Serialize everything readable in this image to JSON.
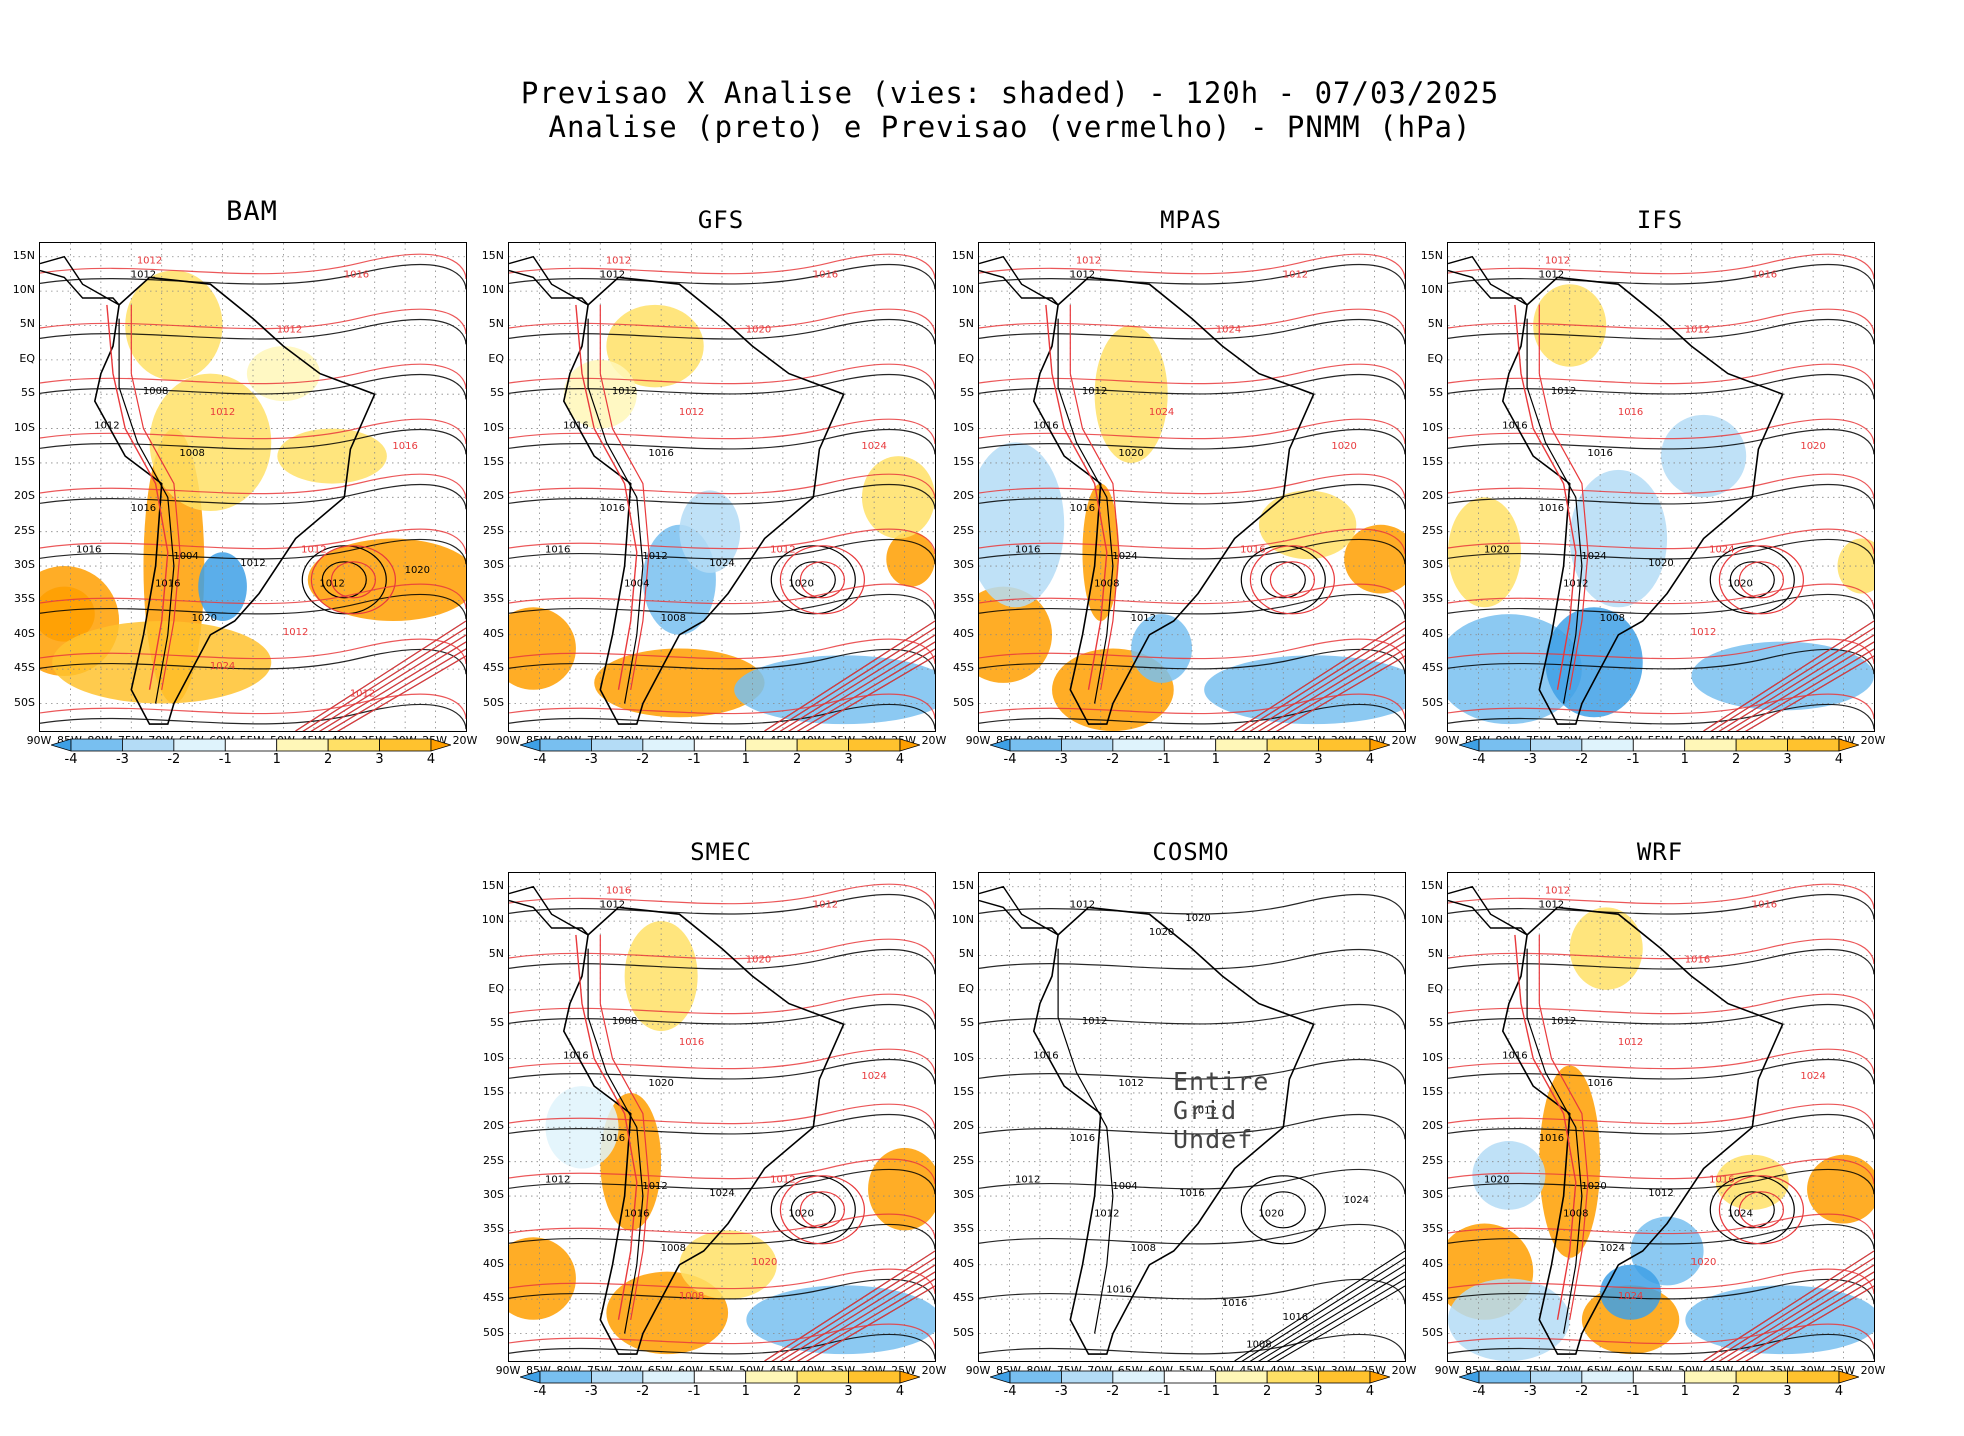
{
  "header": {
    "line1": "Previsao X Analise (vies: shaded) - 120h - 07/03/2025",
    "line2": "Analise (preto) e Previsao (vermelho) - PNMM (hPa)"
  },
  "axes": {
    "lat_labels": [
      "15N",
      "10N",
      "5N",
      "EQ",
      "5S",
      "10S",
      "15S",
      "20S",
      "25S",
      "30S",
      "35S",
      "40S",
      "45S",
      "50S"
    ],
    "lon_labels": [
      "90W",
      "85W",
      "80W",
      "75W",
      "70W",
      "65W",
      "60W",
      "55W",
      "50W",
      "45W",
      "40W",
      "35W",
      "30W",
      "25W",
      "20W"
    ]
  },
  "colorbar": {
    "labels": [
      "-4",
      "-3",
      "-2",
      "-1",
      "1",
      "2",
      "3",
      "4"
    ],
    "colors": [
      "#3ea0e6",
      "#78bff0",
      "#b4dcf6",
      "#dff3fc",
      "#ffffff",
      "#fff7b8",
      "#ffe066",
      "#ffc22e",
      "#ff9f00"
    ]
  },
  "colors": {
    "analysis": "#000000",
    "forecast": "#e8393c"
  },
  "panels": [
    {
      "id": "bam",
      "title": "BAM",
      "undefined": false,
      "labels_black": [
        "1012",
        "1012",
        "1008",
        "1016",
        "1016",
        "1016",
        "1020",
        "1004",
        "1008",
        "1012",
        "1012",
        "1020"
      ],
      "labels_red": [
        "1012",
        "1016",
        "1012",
        "1012",
        "1016",
        "1012",
        "1012",
        "1024",
        "1012"
      ]
    },
    {
      "id": "gfs",
      "title": "GFS",
      "undefined": false,
      "labels_black": [
        "1012",
        "1016",
        "1012",
        "1016",
        "1016",
        "1004",
        "1008",
        "1012",
        "1016",
        "1024",
        "1020"
      ],
      "labels_red": [
        "1012",
        "1016",
        "1012",
        "1020",
        "1024",
        "1012"
      ]
    },
    {
      "id": "mpas",
      "title": "MPAS",
      "undefined": false,
      "labels_black": [
        "1012",
        "1016",
        "1012",
        "1016",
        "1016",
        "1008",
        "1012",
        "1024",
        "1020"
      ],
      "labels_red": [
        "1012",
        "1012",
        "1024",
        "1024",
        "1020",
        "1016"
      ]
    },
    {
      "id": "ifs",
      "title": "IFS",
      "undefined": false,
      "labels_black": [
        "1012",
        "1016",
        "1012",
        "1020",
        "1016",
        "1012",
        "1008",
        "1024",
        "1016",
        "1020",
        "1020"
      ],
      "labels_red": [
        "1012",
        "1016",
        "1016",
        "1012",
        "1020",
        "1024",
        "1012"
      ]
    },
    {
      "id": "smec",
      "title": "SMEC",
      "undefined": false,
      "labels_black": [
        "1012",
        "1016",
        "1008",
        "1012",
        "1016",
        "1016",
        "1008",
        "1012",
        "1020",
        "1024",
        "1020"
      ],
      "labels_red": [
        "1016",
        "1012",
        "1016",
        "1020",
        "1024",
        "1012",
        "1020",
        "1008"
      ]
    },
    {
      "id": "cosmo",
      "title": "COSMO",
      "undefined": true,
      "undefined_text": "Entire Grid Undef",
      "labels_black": [
        "1012",
        "1016",
        "1012",
        "1012",
        "1016",
        "1012",
        "1008",
        "1004",
        "1012",
        "1016",
        "1020",
        "1024",
        "1020",
        "1016",
        "1016",
        "1016",
        "1020",
        "1012",
        "1008"
      ],
      "labels_red": []
    },
    {
      "id": "wrf",
      "title": "WRF",
      "undefined": false,
      "labels_black": [
        "1012",
        "1016",
        "1012",
        "1020",
        "1016",
        "1008",
        "1024",
        "1020",
        "1016",
        "1012",
        "1024"
      ],
      "labels_red": [
        "1012",
        "1016",
        "1012",
        "1016",
        "1024",
        "1016",
        "1020",
        "1024"
      ]
    }
  ]
}
